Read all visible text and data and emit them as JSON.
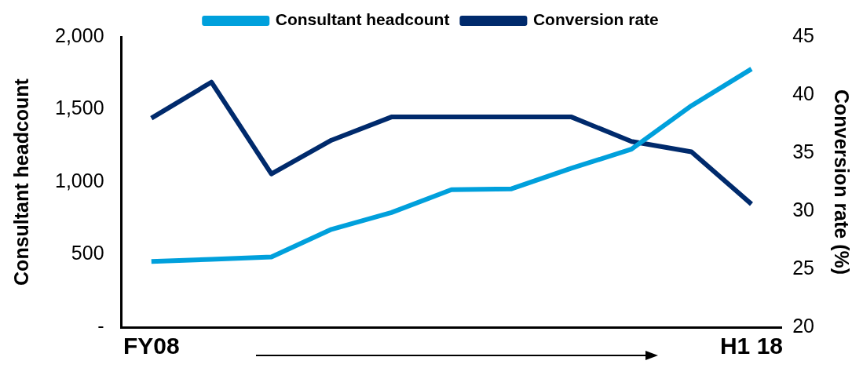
{
  "chart_data": {
    "type": "line",
    "categories": [
      "FY08",
      null,
      null,
      null,
      null,
      null,
      null,
      null,
      null,
      null,
      "H1 18"
    ],
    "ylabel": "Consultant headcount",
    "y2label": "Conversion rate (%)",
    "series": [
      {
        "name": "Consultant headcount",
        "color": "#00a0dc",
        "values": [
          453,
          468,
          484,
          674,
          790,
          947,
          953,
          1095,
          1226,
          1526,
          1779
        ]
      },
      {
        "name": "Conversion rate",
        "color": "#002a6c",
        "axis": "y2",
        "values": [
          38.0,
          41.1,
          33.2,
          36.1,
          38.1,
          38.1,
          38.1,
          38.1,
          36.0,
          35.1,
          30.6
        ]
      }
    ],
    "ylim": [
      0,
      2000
    ],
    "yticks": [
      {
        "value": 0,
        "label": "-"
      },
      {
        "value": 500,
        "label": "500"
      },
      {
        "value": 1000,
        "label": "1,000"
      },
      {
        "value": 1500,
        "label": "1,500"
      },
      {
        "value": 2000,
        "label": "2,000"
      }
    ],
    "y2lim": [
      20,
      45
    ],
    "y2ticks": [
      20,
      25,
      30,
      35,
      40,
      45
    ],
    "grid": false,
    "legend": "top",
    "marker": "none",
    "line_style": "solid"
  }
}
